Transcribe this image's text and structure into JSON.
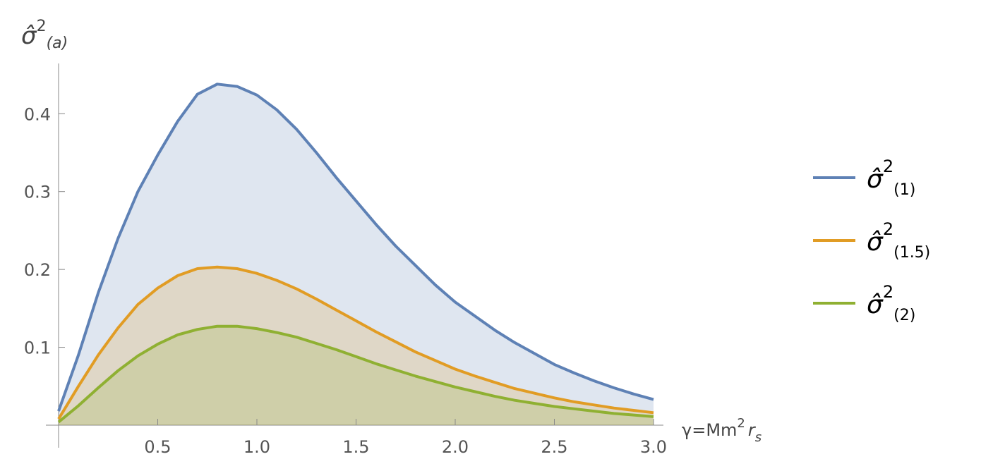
{
  "chart_data": {
    "type": "area-line",
    "y_label": [
      "σ̂",
      "2",
      "(a)"
    ],
    "x_label": [
      "γ=Mm",
      "2",
      "r",
      "s"
    ],
    "x": [
      0,
      0.1,
      0.2,
      0.3,
      0.4,
      0.5,
      0.6,
      0.7,
      0.8,
      0.9,
      1.0,
      1.1,
      1.2,
      1.3,
      1.4,
      1.5,
      1.6,
      1.7,
      1.8,
      1.9,
      2.0,
      2.1,
      2.2,
      2.3,
      2.4,
      2.5,
      2.6,
      2.7,
      2.8,
      2.9,
      3.0
    ],
    "series": [
      {
        "name": [
          "σ̂",
          "2",
          "(1)"
        ],
        "color": "#5e81b5",
        "values": [
          0.018,
          0.09,
          0.17,
          0.24,
          0.3,
          0.347,
          0.39,
          0.425,
          0.438,
          0.435,
          0.424,
          0.405,
          0.38,
          0.35,
          0.318,
          0.288,
          0.258,
          0.23,
          0.205,
          0.18,
          0.158,
          0.14,
          0.122,
          0.106,
          0.092,
          0.078,
          0.067,
          0.057,
          0.048,
          0.04,
          0.033
        ]
      },
      {
        "name": [
          "σ̂",
          "2",
          "(1.5)"
        ],
        "color": "#e19c24",
        "values": [
          0.008,
          0.05,
          0.09,
          0.125,
          0.155,
          0.176,
          0.192,
          0.201,
          0.203,
          0.201,
          0.195,
          0.186,
          0.175,
          0.162,
          0.148,
          0.134,
          0.12,
          0.107,
          0.094,
          0.083,
          0.072,
          0.063,
          0.055,
          0.047,
          0.041,
          0.035,
          0.03,
          0.026,
          0.022,
          0.019,
          0.016
        ]
      },
      {
        "name": [
          "σ̂",
          "2",
          "(2)"
        ],
        "color": "#8fb032",
        "values": [
          0.004,
          0.025,
          0.048,
          0.07,
          0.089,
          0.104,
          0.116,
          0.123,
          0.127,
          0.127,
          0.124,
          0.119,
          0.113,
          0.105,
          0.097,
          0.088,
          0.079,
          0.071,
          0.063,
          0.056,
          0.049,
          0.043,
          0.037,
          0.032,
          0.028,
          0.024,
          0.021,
          0.018,
          0.015,
          0.013,
          0.011
        ]
      }
    ],
    "xlim": [
      0,
      3.0
    ],
    "ylim": [
      0,
      0.46
    ],
    "xticks": [
      {
        "value": 0.5,
        "label": "0.5"
      },
      {
        "value": 1.0,
        "label": "1.0"
      },
      {
        "value": 1.5,
        "label": "1.5"
      },
      {
        "value": 2.0,
        "label": "2.0"
      },
      {
        "value": 2.5,
        "label": "2.5"
      },
      {
        "value": 3.0,
        "label": "3.0"
      }
    ],
    "yticks": [
      0.1,
      0.2,
      0.3,
      0.4
    ],
    "legend": "right"
  }
}
